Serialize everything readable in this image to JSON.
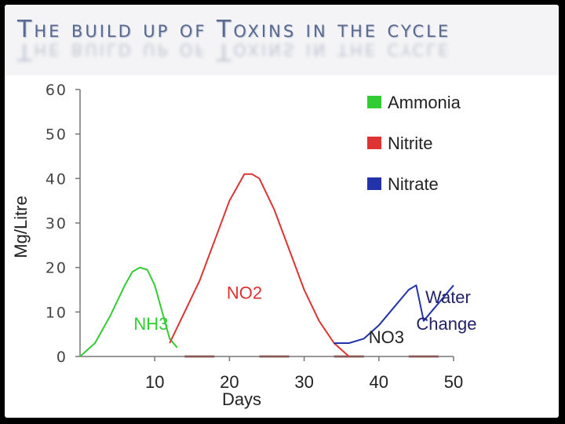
{
  "chart_data": {
    "type": "line",
    "title": "The build up of Toxins in the cycle",
    "xlabel": "Days",
    "ylabel": "Mg/Litre",
    "xlim": [
      0,
      50
    ],
    "ylim": [
      0,
      60
    ],
    "x_ticks": [
      "10",
      "20",
      "30",
      "40",
      "50"
    ],
    "y_ticks": [
      "0",
      "10",
      "20",
      "30",
      "40",
      "50",
      "60"
    ],
    "grid": false,
    "legend_position": "top-right",
    "series": [
      {
        "name": "Ammonia",
        "label": "NH3",
        "color": "#33cc33",
        "points": [
          [
            0,
            0
          ],
          [
            2,
            3
          ],
          [
            4,
            9
          ],
          [
            6,
            16
          ],
          [
            7,
            19
          ],
          [
            8,
            20
          ],
          [
            9,
            19.5
          ],
          [
            10,
            16
          ],
          [
            11,
            10
          ],
          [
            12,
            4
          ],
          [
            13,
            2
          ]
        ]
      },
      {
        "name": "Nitrite",
        "label": "NO2",
        "color": "#dd3333",
        "points": [
          [
            12,
            3
          ],
          [
            14,
            10
          ],
          [
            16,
            17
          ],
          [
            18,
            26
          ],
          [
            20,
            35
          ],
          [
            22,
            41
          ],
          [
            23,
            41
          ],
          [
            24,
            40
          ],
          [
            26,
            33
          ],
          [
            28,
            24
          ],
          [
            30,
            15
          ],
          [
            32,
            8
          ],
          [
            34,
            3
          ],
          [
            36,
            0
          ]
        ]
      },
      {
        "name": "Nitrate",
        "label": "NO3",
        "color": "#2233aa",
        "points": [
          [
            34,
            3
          ],
          [
            36,
            3
          ],
          [
            38,
            4
          ],
          [
            40,
            7
          ],
          [
            42,
            11
          ],
          [
            44,
            15
          ],
          [
            45,
            16
          ],
          [
            46,
            8
          ],
          [
            47,
            10
          ],
          [
            48,
            12
          ],
          [
            50,
            16
          ]
        ]
      }
    ],
    "annotations": [
      {
        "text": "Water",
        "x": 48,
        "y": 12,
        "color": "#222266"
      },
      {
        "text": "Change",
        "x": 48,
        "y": 6,
        "color": "#222266"
      }
    ]
  }
}
